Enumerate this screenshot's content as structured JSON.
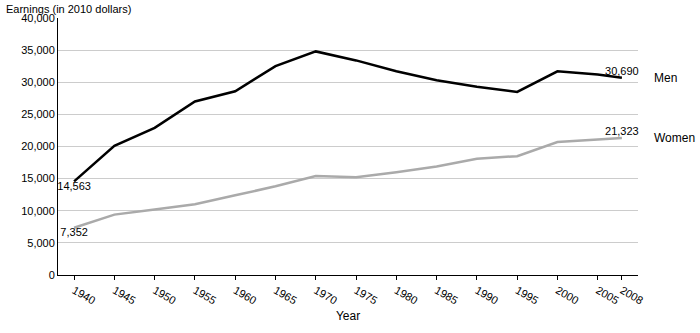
{
  "chart_data": {
    "type": "line",
    "y_label": "Earnings (in 2010 dollars)",
    "x_label": "Year",
    "x": [
      1940,
      1945,
      1950,
      1955,
      1960,
      1965,
      1970,
      1975,
      1980,
      1985,
      1990,
      1995,
      2000,
      2005,
      2008
    ],
    "series": [
      {
        "name": "Men",
        "color": "#000000",
        "values": [
          14563,
          20100,
          22900,
          27000,
          28600,
          32500,
          34800,
          33400,
          31700,
          30300,
          29300,
          28500,
          31700,
          31200,
          30690
        ],
        "value_labels": [
          "14,563",
          null,
          null,
          null,
          null,
          null,
          null,
          null,
          null,
          null,
          null,
          null,
          null,
          null,
          "30,690"
        ]
      },
      {
        "name": "Women",
        "color": "#aaaaaa",
        "values": [
          7352,
          9400,
          10200,
          11000,
          12400,
          13800,
          15400,
          15200,
          16000,
          16900,
          18100,
          18500,
          20700,
          21100,
          21323
        ],
        "value_labels": [
          "7,352",
          null,
          null,
          null,
          null,
          null,
          null,
          null,
          null,
          null,
          null,
          null,
          null,
          null,
          "21,323"
        ]
      }
    ],
    "data_labels": true,
    "xlim": [
      1938,
      2010
    ],
    "xticks": [
      1940,
      1945,
      1950,
      1955,
      1960,
      1965,
      1970,
      1975,
      1980,
      1985,
      1990,
      1995,
      2000,
      2005,
      2008
    ],
    "ylim": [
      0,
      40000
    ],
    "yticks": [
      0,
      {
        "value": 5000,
        "label": "5,000"
      },
      {
        "value": 10000,
        "label": "10,000"
      },
      {
        "value": 15000,
        "label": "15,000"
      },
      {
        "value": 20000,
        "label": "20,000"
      },
      {
        "value": 25000,
        "label": "25,000"
      },
      {
        "value": 30000,
        "label": "30,000"
      },
      {
        "value": 35000,
        "label": "35,000"
      },
      {
        "value": 40000,
        "label": "40,000"
      }
    ],
    "grid": true
  }
}
